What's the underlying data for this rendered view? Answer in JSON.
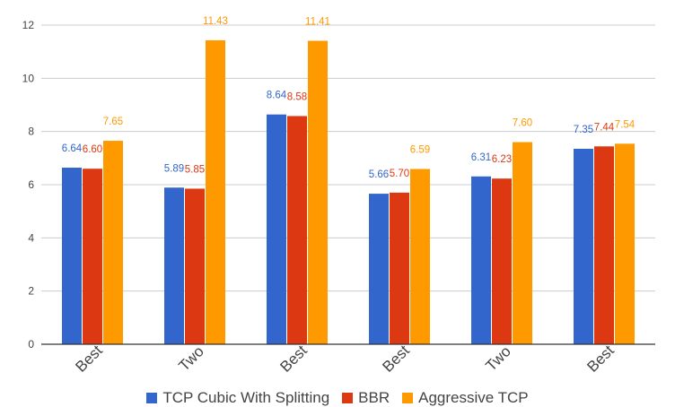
{
  "colors": {
    "tcp_cubic": "#3366cc",
    "bbr": "#dc3912",
    "aggressive": "#ff9900",
    "grid": "#cccccc",
    "axis": "#333333"
  },
  "legend": {
    "items": [
      {
        "label": "TCP Cubic With Splitting",
        "color": "#3366cc"
      },
      {
        "label": "BBR",
        "color": "#dc3912"
      },
      {
        "label": "Aggressive TCP",
        "color": "#ff9900"
      }
    ]
  },
  "chart_data": {
    "type": "bar",
    "categories": [
      "Best",
      "Two",
      "Best",
      "Best",
      "Two",
      "Best"
    ],
    "series": [
      {
        "name": "TCP Cubic With Splitting",
        "color": "#3366cc",
        "values": [
          6.64,
          5.89,
          8.64,
          5.66,
          6.31,
          7.35
        ],
        "labels": [
          "6.64",
          "5.89",
          "8.64",
          "5.66",
          "6.31",
          "7.35"
        ]
      },
      {
        "name": "BBR",
        "color": "#dc3912",
        "values": [
          6.6,
          5.85,
          8.58,
          5.7,
          6.23,
          7.44
        ],
        "labels": [
          "6.60",
          "5.85",
          "8.58",
          "5.70",
          "6.23",
          "7.44"
        ]
      },
      {
        "name": "Aggressive TCP",
        "color": "#ff9900",
        "values": [
          7.65,
          11.43,
          11.41,
          6.59,
          7.6,
          7.54
        ],
        "labels": [
          "7.65",
          "11.43",
          "11.41",
          "6.59",
          "7.60",
          "7.54"
        ]
      }
    ],
    "ylim": [
      0,
      12
    ],
    "yticks": [
      0,
      2,
      4,
      6,
      8,
      10,
      12
    ],
    "ytick_labels": [
      "0",
      "2",
      "4",
      "6",
      "8",
      "10",
      "12"
    ],
    "grid": true,
    "legend_position": "bottom",
    "title": "",
    "xlabel": "",
    "ylabel": ""
  }
}
